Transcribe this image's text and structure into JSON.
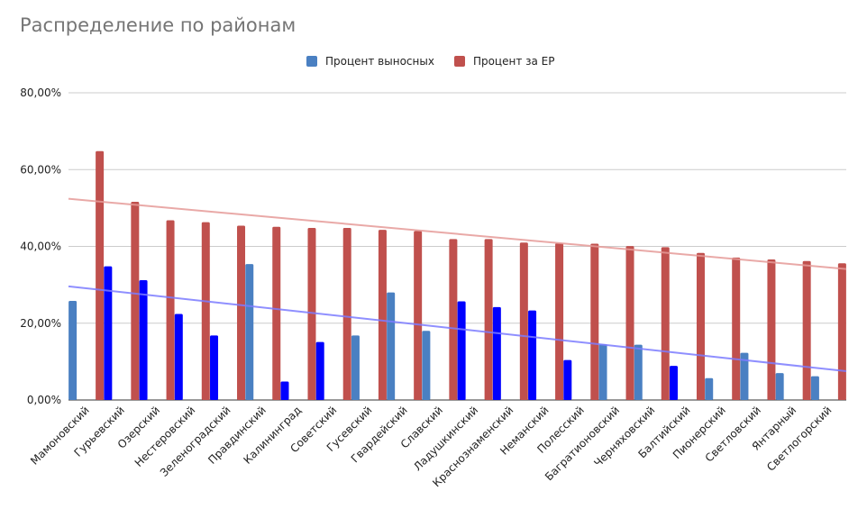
{
  "chart_data": {
    "type": "bar",
    "title": "Распределение по районам",
    "categories": [
      "Мамоновский",
      "Гурьевский",
      "Озерский",
      "Нестеровский",
      "Зеленоградский",
      "Правдинский",
      "Калининград",
      "Советский",
      "Гусевский",
      "Гвардейский",
      "Славский",
      "Ладушкинский",
      "Краснознаменский",
      "Неманский",
      "Полесский",
      "Багратионовский",
      "Черняховский",
      "Балтийский",
      "Пионерский",
      "Светловский",
      "Янтарный",
      "Светлогорский"
    ],
    "series": [
      {
        "name": "Процент выносных",
        "color": "#4a80c2",
        "values": [
          25.8,
          34.8,
          31.2,
          22.4,
          16.8,
          35.4,
          4.8,
          15.1,
          16.8,
          28.0,
          18.0,
          25.7,
          24.2,
          23.3,
          10.4,
          14.5,
          14.4,
          8.9,
          5.7,
          12.3,
          7.0,
          6.2
        ],
        "point_colors": [
          "#4a80c2",
          "#0000ff",
          "#0000ff",
          "#0000ff",
          "#0000ff",
          "#4a80c2",
          "#0000ff",
          "#0000ff",
          "#4a80c2",
          "#4a80c2",
          "#4a80c2",
          "#0000ff",
          "#0000ff",
          "#0000ff",
          "#0000ff",
          "#4a80c2",
          "#4a80c2",
          "#0000ff",
          "#4a80c2",
          "#4a80c2",
          "#4a80c2",
          "#4a80c2"
        ]
      },
      {
        "name": "Процент за ЕР",
        "color": "#c0504d",
        "values": [
          64.8,
          51.6,
          46.8,
          46.3,
          45.4,
          45.1,
          44.8,
          44.8,
          44.3,
          44.0,
          41.9,
          41.9,
          41.0,
          40.8,
          40.7,
          40.1,
          39.8,
          38.3,
          37.1,
          36.6,
          36.2,
          35.6
        ]
      }
    ],
    "trendlines": [
      {
        "series": "Процент выносных",
        "color": "#7b7bff",
        "start": 29.6,
        "end": 7.5
      },
      {
        "series": "Процент за ЕР",
        "color": "#e59a98",
        "start": 52.4,
        "end": 34.1
      }
    ],
    "ylim": [
      0,
      80
    ],
    "yticks": [
      "0,00%",
      "20,00%",
      "40,00%",
      "60,00%",
      "80,00%"
    ],
    "ytick_values": [
      0,
      20,
      40,
      60,
      80
    ],
    "legend": "top",
    "grid": true
  }
}
